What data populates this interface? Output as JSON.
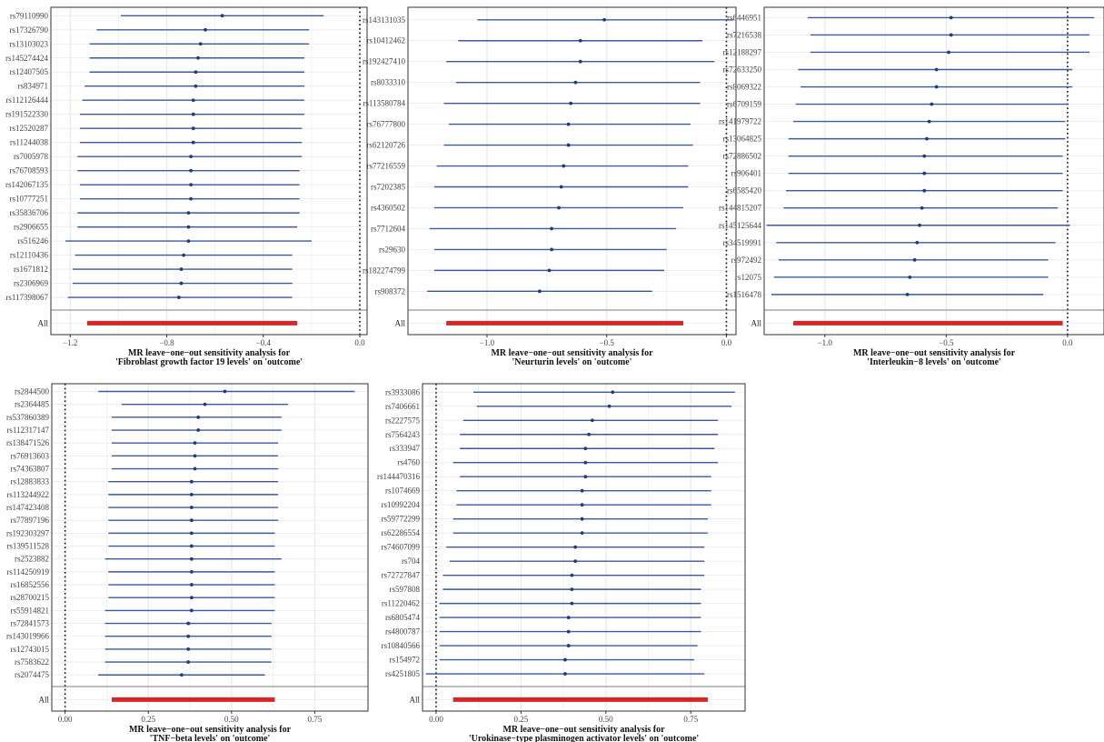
{
  "colors": {
    "interval": "#3b5aa0",
    "point": "#1f3d7a",
    "summary": "#d62728",
    "zero_line": "#111111",
    "grid": "#ebebeb",
    "separator": "#bdbdbd"
  },
  "chart_data": [
    {
      "type": "forest",
      "caption_line1": "MR leave−one−out sensitivity analysis for",
      "caption_line2": "'Fibroblast growth factor 19 levels' on 'outcome'",
      "xlim": [
        -1.28,
        0.03
      ],
      "xticks": [
        -1.2,
        -0.8,
        -0.4,
        0.0
      ],
      "xtick_labels": [
        "−1.2",
        "−0.8",
        "−0.4",
        "0.0"
      ],
      "rows": [
        {
          "snp": "rs79110990",
          "b": -0.57,
          "lo": -0.99,
          "hi": -0.15
        },
        {
          "snp": "rs17326790",
          "b": -0.64,
          "lo": -1.09,
          "hi": -0.21
        },
        {
          "snp": "rs13103023",
          "b": -0.66,
          "lo": -1.12,
          "hi": -0.21
        },
        {
          "snp": "rs145274424",
          "b": -0.67,
          "lo": -1.12,
          "hi": -0.23
        },
        {
          "snp": "rs12407505",
          "b": -0.68,
          "lo": -1.12,
          "hi": -0.23
        },
        {
          "snp": "rs834971",
          "b": -0.68,
          "lo": -1.14,
          "hi": -0.23
        },
        {
          "snp": "rs112126444",
          "b": -0.69,
          "lo": -1.15,
          "hi": -0.23
        },
        {
          "snp": "rs191522330",
          "b": -0.69,
          "lo": -1.16,
          "hi": -0.23
        },
        {
          "snp": "rs12520287",
          "b": -0.69,
          "lo": -1.16,
          "hi": -0.24
        },
        {
          "snp": "rs11244038",
          "b": -0.69,
          "lo": -1.16,
          "hi": -0.24
        },
        {
          "snp": "rs7005978",
          "b": -0.7,
          "lo": -1.17,
          "hi": -0.24
        },
        {
          "snp": "rs76708593",
          "b": -0.7,
          "lo": -1.17,
          "hi": -0.25
        },
        {
          "snp": "rs142067135",
          "b": -0.7,
          "lo": -1.16,
          "hi": -0.25
        },
        {
          "snp": "rs10777251",
          "b": -0.7,
          "lo": -1.16,
          "hi": -0.25
        },
        {
          "snp": "rs35836706",
          "b": -0.71,
          "lo": -1.17,
          "hi": -0.25
        },
        {
          "snp": "rs2906655",
          "b": -0.71,
          "lo": -1.17,
          "hi": -0.26
        },
        {
          "snp": "rs516246",
          "b": -0.71,
          "lo": -1.22,
          "hi": -0.2
        },
        {
          "snp": "rs12110436",
          "b": -0.73,
          "lo": -1.18,
          "hi": -0.28
        },
        {
          "snp": "rs1671812",
          "b": -0.74,
          "lo": -1.19,
          "hi": -0.28
        },
        {
          "snp": "rs2306969",
          "b": -0.74,
          "lo": -1.19,
          "hi": -0.28
        },
        {
          "snp": "rs117398067",
          "b": -0.75,
          "lo": -1.21,
          "hi": -0.28
        }
      ],
      "all_label": "All",
      "summary": {
        "lo": -1.13,
        "hi": -0.26
      }
    },
    {
      "type": "forest",
      "caption_line1": "MR leave−one−out sensitivity analysis for",
      "caption_line2": "'Neurturin levels' on 'outcome'",
      "xlim": [
        -1.33,
        0.04
      ],
      "xticks": [
        -1.0,
        -0.5,
        0.0
      ],
      "xtick_labels": [
        "−1.0",
        "−0.5",
        "0.0"
      ],
      "rows": [
        {
          "snp": "rs143131035",
          "b": -0.51,
          "lo": -1.04,
          "hi": 0.03
        },
        {
          "snp": "rs10412462",
          "b": -0.61,
          "lo": -1.12,
          "hi": -0.1
        },
        {
          "snp": "rs192427410",
          "b": -0.61,
          "lo": -1.17,
          "hi": -0.05
        },
        {
          "snp": "rs8033310",
          "b": -0.63,
          "lo": -1.13,
          "hi": -0.11
        },
        {
          "snp": "rs113580784",
          "b": -0.65,
          "lo": -1.18,
          "hi": -0.11
        },
        {
          "snp": "rs76777800",
          "b": -0.66,
          "lo": -1.16,
          "hi": -0.15
        },
        {
          "snp": "rs62120726",
          "b": -0.66,
          "lo": -1.18,
          "hi": -0.14
        },
        {
          "snp": "rs77216559",
          "b": -0.68,
          "lo": -1.21,
          "hi": -0.16
        },
        {
          "snp": "rs7202385",
          "b": -0.69,
          "lo": -1.22,
          "hi": -0.16
        },
        {
          "snp": "rs4360502",
          "b": -0.7,
          "lo": -1.22,
          "hi": -0.18
        },
        {
          "snp": "rs7712604",
          "b": -0.73,
          "lo": -1.24,
          "hi": -0.21
        },
        {
          "snp": "rs29630",
          "b": -0.73,
          "lo": -1.22,
          "hi": -0.25
        },
        {
          "snp": "rs182274799",
          "b": -0.74,
          "lo": -1.22,
          "hi": -0.26
        },
        {
          "snp": "rs908372",
          "b": -0.78,
          "lo": -1.25,
          "hi": -0.31
        }
      ],
      "all_label": "All",
      "summary": {
        "lo": -1.17,
        "hi": -0.18
      }
    },
    {
      "type": "forest",
      "caption_line1": "MR leave−one−out sensitivity analysis for",
      "caption_line2": "'Interleukin−8 levels' on 'outcome'",
      "xlim": [
        -1.25,
        0.15
      ],
      "xticks": [
        -1.0,
        -0.5,
        0.0
      ],
      "xtick_labels": [
        "−1.0",
        "−0.5",
        "0.0"
      ],
      "rows": [
        {
          "snp": "rs6446951",
          "b": -0.48,
          "lo": -1.07,
          "hi": 0.11
        },
        {
          "snp": "rs7216538",
          "b": -0.48,
          "lo": -1.06,
          "hi": 0.09
        },
        {
          "snp": "rs12188297",
          "b": -0.49,
          "lo": -1.06,
          "hi": 0.09
        },
        {
          "snp": "rs72633250",
          "b": -0.54,
          "lo": -1.11,
          "hi": 0.02
        },
        {
          "snp": "rs8069322",
          "b": -0.54,
          "lo": -1.1,
          "hi": 0.02
        },
        {
          "snp": "rs6709159",
          "b": -0.56,
          "lo": -1.12,
          "hi": 0.0
        },
        {
          "snp": "rs141979722",
          "b": -0.57,
          "lo": -1.13,
          "hi": -0.01
        },
        {
          "snp": "rs13064825",
          "b": -0.58,
          "lo": -1.15,
          "hi": -0.01
        },
        {
          "snp": "rs72886502",
          "b": -0.59,
          "lo": -1.15,
          "hi": -0.02
        },
        {
          "snp": "rs906401",
          "b": -0.59,
          "lo": -1.15,
          "hi": -0.02
        },
        {
          "snp": "rs6585420",
          "b": -0.59,
          "lo": -1.16,
          "hi": -0.02
        },
        {
          "snp": "rs144815207",
          "b": -0.6,
          "lo": -1.17,
          "hi": -0.04
        },
        {
          "snp": "rs145125644",
          "b": -0.61,
          "lo": -1.24,
          "hi": 0.01
        },
        {
          "snp": "rs34519991",
          "b": -0.62,
          "lo": -1.2,
          "hi": -0.05
        },
        {
          "snp": "rs972492",
          "b": -0.63,
          "lo": -1.19,
          "hi": -0.08
        },
        {
          "snp": "rs12075",
          "b": -0.65,
          "lo": -1.21,
          "hi": -0.08
        },
        {
          "snp": "rs1516478",
          "b": -0.66,
          "lo": -1.22,
          "hi": -0.1
        }
      ],
      "all_label": "All",
      "summary": {
        "lo": -1.13,
        "hi": -0.02
      }
    },
    {
      "type": "forest",
      "caption_line1": "MR leave−one−out sensitivity analysis for",
      "caption_line2": "'TNF−beta levels' on 'outcome'",
      "xlim": [
        -0.04,
        0.91
      ],
      "xticks": [
        0.0,
        0.25,
        0.5,
        0.75
      ],
      "xtick_labels": [
        "0.00",
        "0.25",
        "0.50",
        "0.75"
      ],
      "rows": [
        {
          "snp": "rs2844500",
          "b": 0.48,
          "lo": 0.1,
          "hi": 0.87
        },
        {
          "snp": "rs2364485",
          "b": 0.42,
          "lo": 0.17,
          "hi": 0.67
        },
        {
          "snp": "rs537860389",
          "b": 0.4,
          "lo": 0.14,
          "hi": 0.65
        },
        {
          "snp": "rs112317147",
          "b": 0.4,
          "lo": 0.14,
          "hi": 0.65
        },
        {
          "snp": "rs138471526",
          "b": 0.39,
          "lo": 0.14,
          "hi": 0.64
        },
        {
          "snp": "rs76913603",
          "b": 0.39,
          "lo": 0.14,
          "hi": 0.64
        },
        {
          "snp": "rs74363807",
          "b": 0.39,
          "lo": 0.14,
          "hi": 0.64
        },
        {
          "snp": "rs12883833",
          "b": 0.38,
          "lo": 0.13,
          "hi": 0.64
        },
        {
          "snp": "rs113244922",
          "b": 0.38,
          "lo": 0.13,
          "hi": 0.64
        },
        {
          "snp": "rs147423408",
          "b": 0.38,
          "lo": 0.13,
          "hi": 0.64
        },
        {
          "snp": "rs77897196",
          "b": 0.38,
          "lo": 0.13,
          "hi": 0.64
        },
        {
          "snp": "rs192303297",
          "b": 0.38,
          "lo": 0.13,
          "hi": 0.63
        },
        {
          "snp": "rs139511528",
          "b": 0.38,
          "lo": 0.13,
          "hi": 0.63
        },
        {
          "snp": "rs2523882",
          "b": 0.38,
          "lo": 0.12,
          "hi": 0.65
        },
        {
          "snp": "rs114250919",
          "b": 0.38,
          "lo": 0.13,
          "hi": 0.63
        },
        {
          "snp": "rs16852556",
          "b": 0.38,
          "lo": 0.13,
          "hi": 0.63
        },
        {
          "snp": "rs28700215",
          "b": 0.38,
          "lo": 0.13,
          "hi": 0.63
        },
        {
          "snp": "rs55914821",
          "b": 0.38,
          "lo": 0.12,
          "hi": 0.63
        },
        {
          "snp": "rs72841573",
          "b": 0.37,
          "lo": 0.12,
          "hi": 0.62
        },
        {
          "snp": "rs143019966",
          "b": 0.37,
          "lo": 0.12,
          "hi": 0.62
        },
        {
          "snp": "rs12743015",
          "b": 0.37,
          "lo": 0.12,
          "hi": 0.62
        },
        {
          "snp": "rs7583622",
          "b": 0.37,
          "lo": 0.12,
          "hi": 0.62
        },
        {
          "snp": "rs2074475",
          "b": 0.35,
          "lo": 0.1,
          "hi": 0.6
        }
      ],
      "all_label": "All",
      "summary": {
        "lo": 0.14,
        "hi": 0.63
      }
    },
    {
      "type": "forest",
      "caption_line1": "MR leave−one−out sensitivity analysis for",
      "caption_line2": "'Urokinase−type plasminogen activator levels' on 'outcome'",
      "xlim": [
        -0.04,
        0.91
      ],
      "xticks": [
        0.0,
        0.25,
        0.5,
        0.75
      ],
      "xtick_labels": [
        "0.00",
        "0.25",
        "0.50",
        "0.75"
      ],
      "rows": [
        {
          "snp": "rs3933086",
          "b": 0.52,
          "lo": 0.11,
          "hi": 0.88
        },
        {
          "snp": "rs7406661",
          "b": 0.51,
          "lo": 0.12,
          "hi": 0.87
        },
        {
          "snp": "rs2227575",
          "b": 0.46,
          "lo": 0.08,
          "hi": 0.83
        },
        {
          "snp": "rs7564243",
          "b": 0.45,
          "lo": 0.07,
          "hi": 0.83
        },
        {
          "snp": "rs333947",
          "b": 0.44,
          "lo": 0.07,
          "hi": 0.82
        },
        {
          "snp": "rs4760",
          "b": 0.44,
          "lo": 0.05,
          "hi": 0.83
        },
        {
          "snp": "rs144470316",
          "b": 0.44,
          "lo": 0.07,
          "hi": 0.81
        },
        {
          "snp": "rs1074669",
          "b": 0.43,
          "lo": 0.06,
          "hi": 0.81
        },
        {
          "snp": "rs10992204",
          "b": 0.43,
          "lo": 0.06,
          "hi": 0.81
        },
        {
          "snp": "rs59772299",
          "b": 0.43,
          "lo": 0.05,
          "hi": 0.8
        },
        {
          "snp": "rs62286554",
          "b": 0.43,
          "lo": 0.05,
          "hi": 0.8
        },
        {
          "snp": "rs74607099",
          "b": 0.41,
          "lo": 0.03,
          "hi": 0.79
        },
        {
          "snp": "rs704",
          "b": 0.41,
          "lo": 0.04,
          "hi": 0.79
        },
        {
          "snp": "rs72727847",
          "b": 0.4,
          "lo": 0.02,
          "hi": 0.79
        },
        {
          "snp": "rs597808",
          "b": 0.4,
          "lo": 0.02,
          "hi": 0.78
        },
        {
          "snp": "rs11220462",
          "b": 0.4,
          "lo": 0.01,
          "hi": 0.78
        },
        {
          "snp": "rs6805474",
          "b": 0.39,
          "lo": 0.01,
          "hi": 0.78
        },
        {
          "snp": "rs4800787",
          "b": 0.39,
          "lo": 0.01,
          "hi": 0.78
        },
        {
          "snp": "rs10840566",
          "b": 0.39,
          "lo": 0.01,
          "hi": 0.77
        },
        {
          "snp": "rs154972",
          "b": 0.38,
          "lo": 0.01,
          "hi": 0.76
        },
        {
          "snp": "rs4251805",
          "b": 0.38,
          "lo": -0.03,
          "hi": 0.79
        }
      ],
      "all_label": "All",
      "summary": {
        "lo": 0.05,
        "hi": 0.8
      }
    }
  ]
}
